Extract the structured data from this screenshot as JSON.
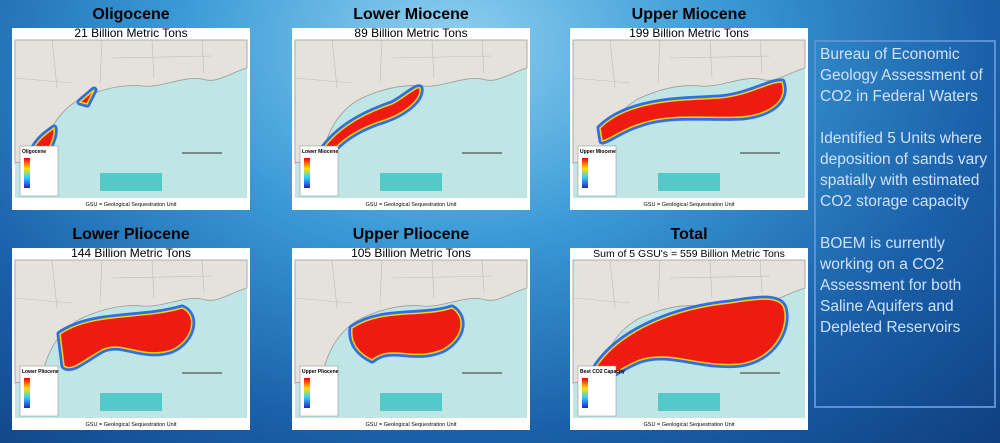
{
  "panels": [
    {
      "title": "Oligocene",
      "subtitle": "21 Billion Metric Tons",
      "legend": "Oligocene",
      "footer": "GSU = Geological Sequestration Unit"
    },
    {
      "title": "Lower Miocene",
      "subtitle": "89 Billion Metric Tons",
      "legend": "Lower Miocene",
      "footer": "GSU = Geological Sequestration Unit"
    },
    {
      "title": "Upper Miocene",
      "subtitle": "199 Billion Metric Tons",
      "legend": "Upper Miocene",
      "footer": "GSU = Geological Sequestration Unit"
    },
    {
      "title": "Lower Pliocene",
      "subtitle": "144 Billion Metric Tons",
      "legend": "Lower Pliocene",
      "footer": "GSU = Geological Sequestration Unit"
    },
    {
      "title": "Upper Pliocene",
      "subtitle": "105 Billion Metric Tons",
      "legend": "Upper Pliocene",
      "footer": "GSU = Geological Sequestration Unit"
    },
    {
      "title": "Total",
      "subtitle": "Sum of 5 GSU's = 559 Billion Metric Tons",
      "legend": "Best CO2 Capacity",
      "footer": "GSU = Geological Sequestration Unit"
    }
  ],
  "sidebar": {
    "paragraphs": [
      "Bureau of Economic Geology Assessment of CO2 in Federal Waters",
      "Identified 5 Units where deposition of sands vary spatially with estimated CO2 storage capacity",
      "BOEM is currently working on a CO2 Assessment for both Saline Aquifers and Depleted Reservoirs"
    ]
  }
}
